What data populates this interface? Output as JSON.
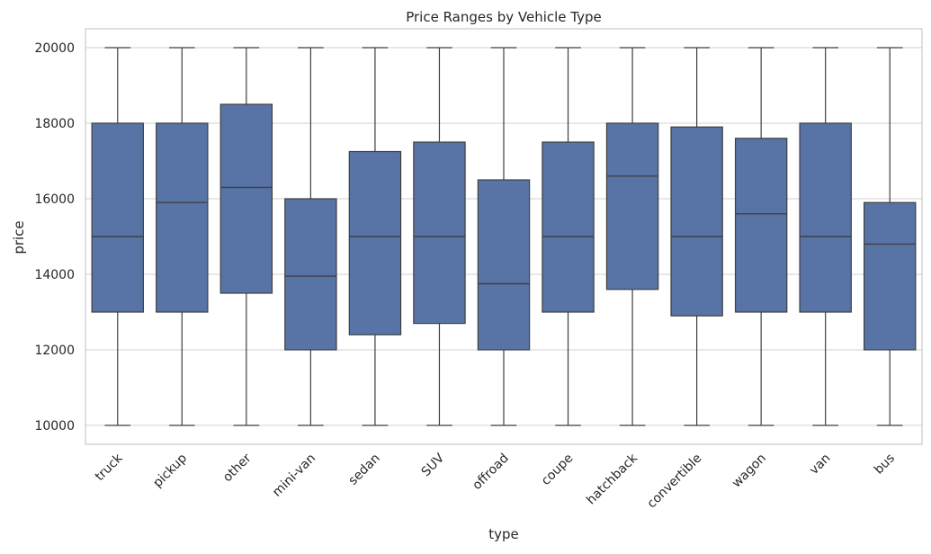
{
  "chart_data": {
    "type": "box",
    "title": "Price Ranges by Vehicle Type",
    "xlabel": "type",
    "ylabel": "price",
    "ylim": [
      9500,
      20500
    ],
    "yticks": [
      10000,
      12000,
      14000,
      16000,
      18000,
      20000
    ],
    "grid": true,
    "legend": "none",
    "colors": {
      "box_fill": "#5874a6",
      "line": "#3f3f3f",
      "grid": "#d0d0d0",
      "frame": "#cccccc"
    },
    "categories": [
      "truck",
      "pickup",
      "other",
      "mini-van",
      "sedan",
      "SUV",
      "offroad",
      "coupe",
      "hatchback",
      "convertible",
      "wagon",
      "van",
      "bus"
    ],
    "boxes": [
      {
        "category": "truck",
        "min": 10000,
        "q1": 13000,
        "median": 15000,
        "q3": 18000,
        "max": 20000
      },
      {
        "category": "pickup",
        "min": 10000,
        "q1": 13000,
        "median": 15900,
        "q3": 18000,
        "max": 20000
      },
      {
        "category": "other",
        "min": 10000,
        "q1": 13500,
        "median": 16300,
        "q3": 18500,
        "max": 20000
      },
      {
        "category": "mini-van",
        "min": 10000,
        "q1": 12000,
        "median": 13950,
        "q3": 16000,
        "max": 20000
      },
      {
        "category": "sedan",
        "min": 10000,
        "q1": 12400,
        "median": 15000,
        "q3": 17250,
        "max": 20000
      },
      {
        "category": "SUV",
        "min": 10000,
        "q1": 12700,
        "median": 15000,
        "q3": 17500,
        "max": 20000
      },
      {
        "category": "offroad",
        "min": 10000,
        "q1": 12000,
        "median": 13750,
        "q3": 16500,
        "max": 20000
      },
      {
        "category": "coupe",
        "min": 10000,
        "q1": 13000,
        "median": 15000,
        "q3": 17500,
        "max": 20000
      },
      {
        "category": "hatchback",
        "min": 10000,
        "q1": 13600,
        "median": 16600,
        "q3": 18000,
        "max": 20000
      },
      {
        "category": "convertible",
        "min": 10000,
        "q1": 12900,
        "median": 15000,
        "q3": 17900,
        "max": 20000
      },
      {
        "category": "wagon",
        "min": 10000,
        "q1": 13000,
        "median": 15600,
        "q3": 17600,
        "max": 20000
      },
      {
        "category": "van",
        "min": 10000,
        "q1": 13000,
        "median": 15000,
        "q3": 18000,
        "max": 20000
      },
      {
        "category": "bus",
        "min": 10000,
        "q1": 12000,
        "median": 14800,
        "q3": 15900,
        "max": 20000
      }
    ]
  }
}
